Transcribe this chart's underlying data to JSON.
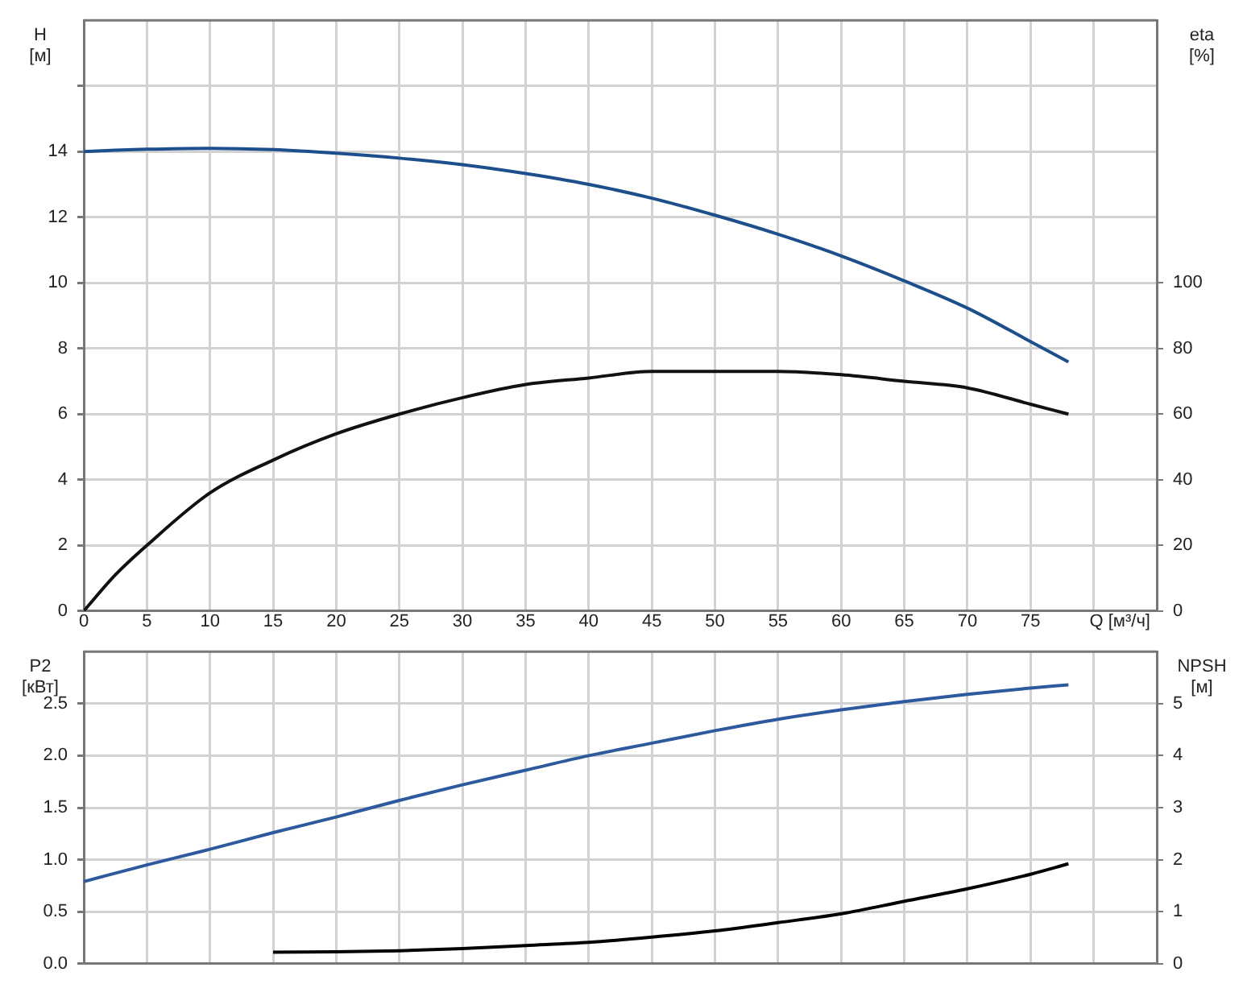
{
  "chart_data": [
    {
      "type": "line",
      "xlabel": "Q [м³/ч]",
      "ylabel": "H [м]",
      "y2label": "eta [%]",
      "grid": true,
      "marker": "none",
      "line_style": "solid",
      "x": [
        0,
        2.5,
        5,
        10,
        15,
        20,
        25,
        30,
        35,
        40,
        45,
        50,
        55,
        60,
        65,
        70,
        75,
        78
      ],
      "xlim": [
        0,
        85
      ],
      "xticks": [
        0,
        5,
        10,
        15,
        20,
        25,
        30,
        35,
        40,
        45,
        50,
        55,
        60,
        65,
        70,
        75,
        {
          "value": 80,
          "label": null
        }
      ],
      "ylim": [
        0,
        18
      ],
      "yticks": [
        0,
        2,
        4,
        6,
        8,
        10,
        12,
        14,
        {
          "value": 16,
          "label": null
        }
      ],
      "y2lim": [
        0,
        180
      ],
      "y2ticks": [
        0,
        20,
        40,
        60,
        80,
        100
      ],
      "series": [
        {
          "color": "#1c4f8c",
          "values": [
            14.0,
            14.04,
            14.07,
            14.1,
            14.06,
            13.95,
            13.8,
            13.6,
            13.33,
            13.0,
            12.58,
            12.06,
            11.48,
            10.82,
            10.06,
            9.23,
            8.21,
            7.59
          ]
        },
        {
          "color": "#111111",
          "axis": "y2",
          "values": [
            0,
            11,
            20,
            36,
            46,
            54,
            60,
            65,
            69,
            71,
            73,
            73,
            73,
            72,
            70,
            68,
            63,
            60
          ]
        }
      ]
    },
    {
      "type": "line",
      "ylabel": "P2 [кВт]",
      "y2label": "NPSH [м]",
      "grid": true,
      "marker": "none",
      "line_style": "solid",
      "tick_labels": "y",
      "xlim": [
        0,
        85
      ],
      "xticks": [
        0,
        5,
        10,
        15,
        20,
        25,
        30,
        35,
        40,
        45,
        50,
        55,
        60,
        65,
        70,
        75,
        80
      ],
      "ylim": [
        0,
        3
      ],
      "yticks": [
        {
          "value": 0,
          "label": "0.0"
        },
        0.5,
        {
          "value": 1,
          "label": "1.0"
        },
        1.5,
        {
          "value": 2,
          "label": "2.0"
        },
        2.5
      ],
      "y2lim": [
        0,
        6
      ],
      "y2ticks": [
        0,
        1,
        2,
        3,
        4,
        5
      ],
      "series": [
        {
          "color": "#2d5a9e",
          "x": [
            0,
            5,
            10,
            15,
            20,
            25,
            30,
            35,
            40,
            45,
            50,
            55,
            60,
            65,
            70,
            75,
            78
          ],
          "values": [
            0.79,
            0.95,
            1.1,
            1.26,
            1.41,
            1.57,
            1.72,
            1.86,
            2.0,
            2.12,
            2.24,
            2.35,
            2.44,
            2.52,
            2.59,
            2.65,
            2.68
          ]
        },
        {
          "color": "#000000",
          "axis": "y2",
          "x": [
            15,
            20,
            25,
            30,
            35,
            40,
            45,
            50,
            55,
            60,
            65,
            70,
            75,
            78
          ],
          "values": [
            0.22,
            0.23,
            0.25,
            0.29,
            0.35,
            0.41,
            0.51,
            0.63,
            0.79,
            0.96,
            1.2,
            1.44,
            1.72,
            1.92
          ]
        }
      ]
    }
  ]
}
